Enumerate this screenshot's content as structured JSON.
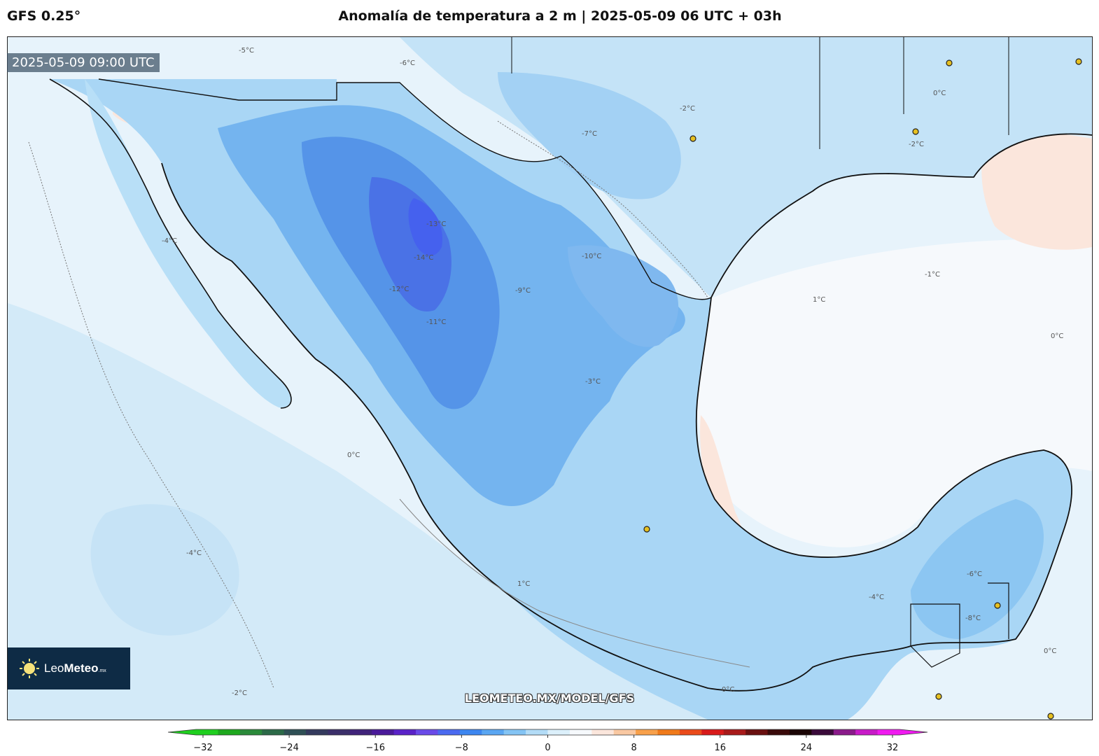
{
  "header": {
    "model": "GFS 0.25°",
    "title": "Anomalía de temperatura a 2 m | 2025-05-09 06 UTC + 03h"
  },
  "map": {
    "valid_time": "2025-05-09 09:00 UTC",
    "logo": {
      "prefix": "Leo",
      "brand": "Meteo",
      "suffix": ".mx"
    },
    "site_url": "LEOMETEO.MX/MODEL/GFS",
    "contour_labels": [
      "-5°C",
      "-6°C",
      "-4°C",
      "-3°C",
      "-1°C",
      "-7°C",
      "-8°C",
      "-9°C",
      "-10°C",
      "-12°C",
      "-13°C",
      "-14°C",
      "-2°C",
      "0°C",
      "1°C",
      "-11°C"
    ]
  },
  "colorbar": {
    "min": -32,
    "max": 32,
    "tick_labels": [
      "−32",
      "−24",
      "−16",
      "−8",
      "0",
      "8",
      "16",
      "24",
      "32"
    ],
    "colors": [
      "#1fcf1f",
      "#1ea81e",
      "#2a8a3a",
      "#2c6a48",
      "#2f5056",
      "#343a5e",
      "#3b2f6a",
      "#40237a",
      "#4a1a9a",
      "#5a22c8",
      "#6a4ae8",
      "#4a6af0",
      "#3d86f0",
      "#5aa6f2",
      "#84c4f4",
      "#b3dcf7",
      "#dcf0fb",
      "#f6f9fc",
      "#fbe6dc",
      "#f9c8a2",
      "#f8a04a",
      "#f07a1a",
      "#ea4a1a",
      "#d81a1a",
      "#a81a1a",
      "#6a1010",
      "#3a0a0a",
      "#1a0505",
      "#3a0a3a",
      "#8a1a8a",
      "#c81ac8",
      "#f01af0"
    ]
  }
}
